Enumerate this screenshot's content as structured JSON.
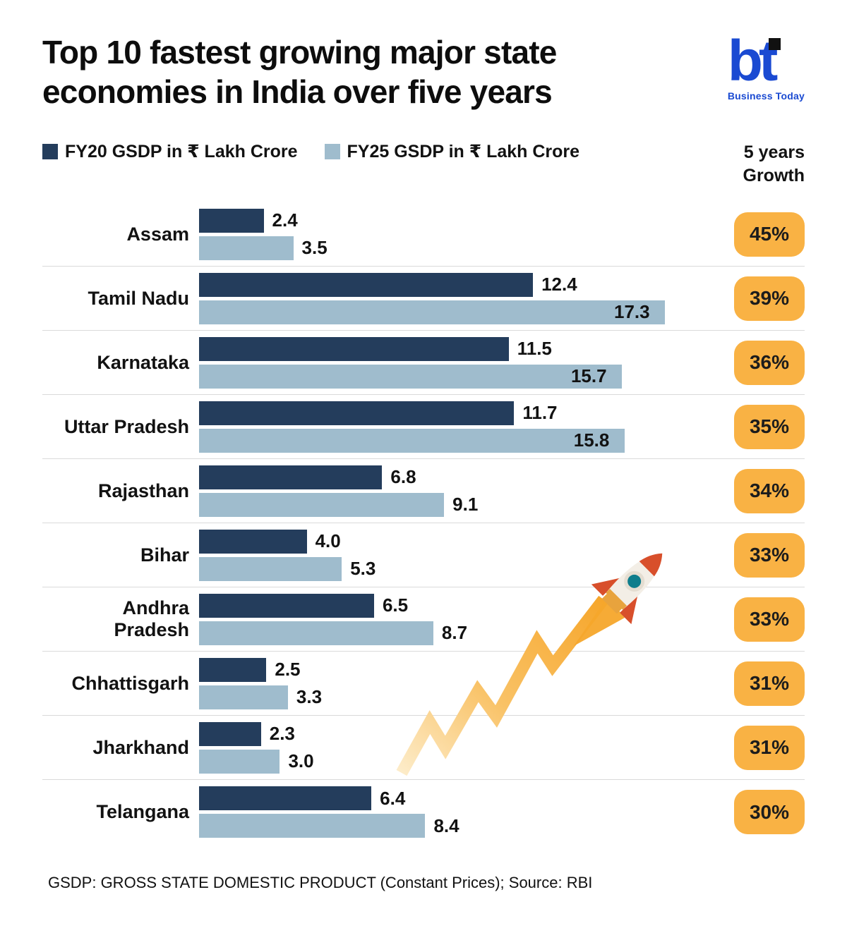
{
  "header": {
    "title_line1": "Top 10 fastest growing major state",
    "title_line2": "economies in India over five years",
    "logo": {
      "text": "bt",
      "subtext": "Business Today"
    }
  },
  "legend": {
    "fy20_label": "FY20 GSDP in ₹ Lakh Crore",
    "fy25_label": "FY25 GSDP in ₹ Lakh Crore",
    "growth_header_line1": "5 years",
    "growth_header_line2": "Growth"
  },
  "chart_data": {
    "type": "bar",
    "orientation": "horizontal",
    "title": "Top 10 fastest growing major state economies in India over five years",
    "categories": [
      "Assam",
      "Tamil Nadu",
      "Karnataka",
      "Uttar Pradesh",
      "Rajasthan",
      "Bihar",
      "Andhra Pradesh",
      "Chhattisgarh",
      "Jharkhand",
      "Telangana"
    ],
    "series": [
      {
        "name": "FY20 GSDP in ₹ Lakh Crore",
        "values": [
          2.4,
          12.4,
          11.5,
          11.7,
          6.8,
          4.0,
          6.5,
          2.5,
          2.3,
          6.4
        ]
      },
      {
        "name": "FY25 GSDP in ₹ Lakh Crore",
        "values": [
          3.5,
          17.3,
          15.7,
          15.8,
          9.1,
          5.3,
          8.7,
          3.3,
          3.0,
          8.4
        ]
      }
    ],
    "growth_percent": [
      "45%",
      "39%",
      "36%",
      "35%",
      "34%",
      "33%",
      "33%",
      "31%",
      "31%",
      "30%"
    ],
    "axis_max": 17.3,
    "legend_position": "top",
    "grid": false,
    "rows": [
      {
        "state": "Assam",
        "fy20": 2.4,
        "fy25": 3.5,
        "fy20_label": "2.4",
        "fy25_label": "3.5",
        "growth": "45%"
      },
      {
        "state": "Tamil Nadu",
        "fy20": 12.4,
        "fy25": 17.3,
        "fy20_label": "12.4",
        "fy25_label": "17.3",
        "growth": "39%"
      },
      {
        "state": "Karnataka",
        "fy20": 11.5,
        "fy25": 15.7,
        "fy20_label": "11.5",
        "fy25_label": "15.7",
        "growth": "36%"
      },
      {
        "state": "Uttar Pradesh",
        "fy20": 11.7,
        "fy25": 15.8,
        "fy20_label": "11.7",
        "fy25_label": "15.8",
        "growth": "35%"
      },
      {
        "state": "Rajasthan",
        "fy20": 6.8,
        "fy25": 9.1,
        "fy20_label": "6.8",
        "fy25_label": "9.1",
        "growth": "34%"
      },
      {
        "state": "Bihar",
        "fy20": 4.0,
        "fy25": 5.3,
        "fy20_label": "4.0",
        "fy25_label": "5.3",
        "growth": "33%"
      },
      {
        "state": "Andhra Pradesh",
        "fy20": 6.5,
        "fy25": 8.7,
        "fy20_label": "6.5",
        "fy25_label": "8.7",
        "growth": "33%"
      },
      {
        "state": "Chhattisgarh",
        "fy20": 2.5,
        "fy25": 3.3,
        "fy20_label": "2.5",
        "fy25_label": "3.3",
        "growth": "31%"
      },
      {
        "state": "Jharkhand",
        "fy20": 2.3,
        "fy25": 3.0,
        "fy20_label": "2.3",
        "fy25_label": "3.0",
        "growth": "31%"
      },
      {
        "state": "Telangana",
        "fy20": 6.4,
        "fy25": 8.4,
        "fy20_label": "6.4",
        "fy25_label": "8.4",
        "growth": "30%"
      }
    ],
    "colors": {
      "fy20": "#243d5c",
      "fy25": "#9fbccd",
      "badge": "#f9b244",
      "trail_orange": "#f6a62b",
      "rocket_red": "#d84f2b",
      "rocket_window_teal": "#0e7d8c",
      "logo_blue": "#1a4ad2"
    }
  },
  "footer": {
    "note": "GSDP: GROSS STATE DOMESTIC PRODUCT (Constant Prices); Source: RBI"
  }
}
